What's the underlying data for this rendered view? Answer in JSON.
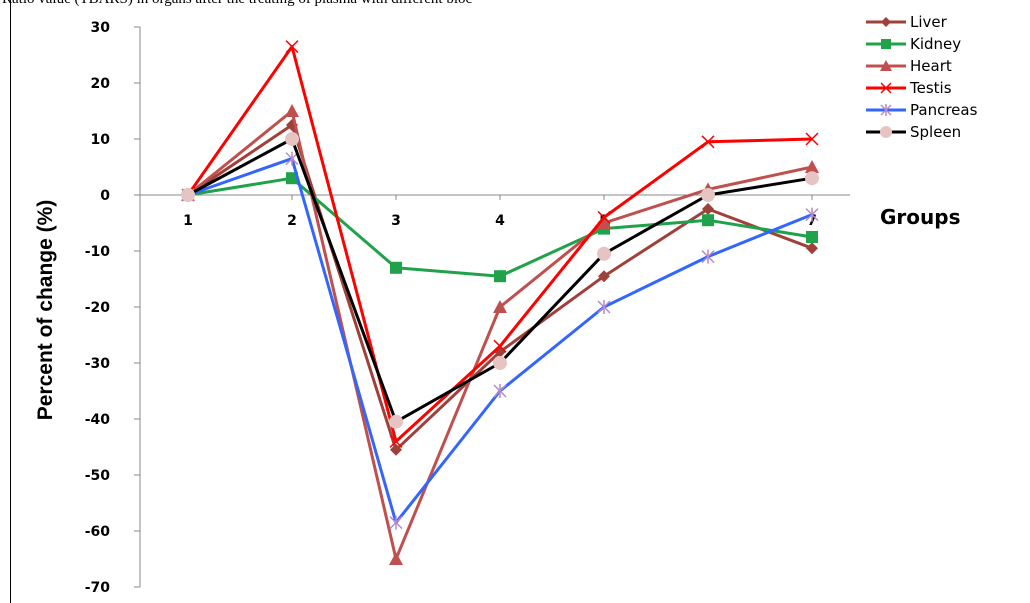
{
  "caption": "Ratio value (TBARS) in organs after the treating of plasma with different bioc",
  "chart_data": {
    "type": "line",
    "title": "",
    "xlabel": "Groups",
    "ylabel": "Percent of change (%)",
    "categories": [
      "1",
      "2",
      "3",
      "4",
      "5",
      "6",
      "7"
    ],
    "ylim": [
      -70,
      30
    ],
    "yticks": [
      30,
      20,
      10,
      0,
      -10,
      -20,
      -30,
      -40,
      -50,
      -60,
      -70
    ],
    "grid": false,
    "legend_position": "top-right",
    "series": [
      {
        "name": "Liver",
        "color": "#a0403a",
        "marker": "diamond",
        "values": [
          0,
          12.5,
          -45.5,
          -28,
          -14.5,
          -2.5,
          -9.5
        ]
      },
      {
        "name": "Kidney",
        "color": "#1fa24a",
        "marker": "square",
        "values": [
          0,
          3,
          -13,
          -14.5,
          -6,
          -4.5,
          -7.5
        ]
      },
      {
        "name": "Heart",
        "color": "#c0504d",
        "marker": "triangle",
        "values": [
          0,
          15,
          -65,
          -20,
          -5,
          1,
          5
        ]
      },
      {
        "name": "Testis",
        "color": "#ff0000",
        "marker": "x",
        "values": [
          0,
          26.5,
          -44,
          -27,
          -4,
          9.5,
          10
        ]
      },
      {
        "name": "Pancreas",
        "color": "#3366ff",
        "marker": "star",
        "values": [
          0,
          6.5,
          -58.5,
          -35,
          -20,
          -11,
          -3.5
        ]
      },
      {
        "name": "Spleen",
        "color": "#000000",
        "marker": "circle",
        "marker_color": "#e6c4c4",
        "values": [
          0,
          10,
          -40.5,
          -30,
          -10.5,
          0,
          3
        ]
      }
    ]
  }
}
